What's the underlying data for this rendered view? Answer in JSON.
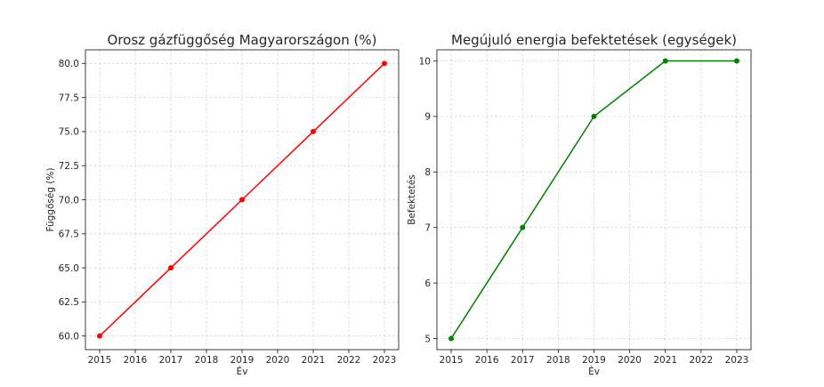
{
  "chart_data": [
    {
      "type": "line",
      "title": "Orosz gázfüggőség Magyarországon (%)",
      "xlabel": "Év",
      "ylabel": "Függőség (%)",
      "x": [
        2015,
        2017,
        2019,
        2021,
        2023
      ],
      "xticks": [
        "2015",
        "2016",
        "2017",
        "2018",
        "2019",
        "2020",
        "2021",
        "2022",
        "2023"
      ],
      "xlim": [
        2014.6,
        2023.4
      ],
      "yticks": [
        "60.0",
        "62.5",
        "65.0",
        "67.5",
        "70.0",
        "72.5",
        "75.0",
        "77.5",
        "80.0"
      ],
      "ylim": [
        59.0,
        81.0
      ],
      "series": [
        {
          "values": [
            60,
            65,
            70,
            75,
            80
          ],
          "color": "#ff0000"
        }
      ],
      "grid": true
    },
    {
      "type": "line",
      "title": "Megújuló energia befektetések (egységek)",
      "xlabel": "Év",
      "ylabel": "Befektetés",
      "x": [
        2015,
        2017,
        2019,
        2021,
        2023
      ],
      "xticks": [
        "2015",
        "2016",
        "2017",
        "2018",
        "2019",
        "2020",
        "2021",
        "2022",
        "2023"
      ],
      "xlim": [
        2014.6,
        2023.4
      ],
      "yticks": [
        "5",
        "6",
        "7",
        "8",
        "9",
        "10"
      ],
      "ylim": [
        4.8,
        10.2
      ],
      "series": [
        {
          "values": [
            5,
            7,
            9,
            10,
            10
          ],
          "color": "#008000"
        }
      ],
      "grid": true
    }
  ]
}
